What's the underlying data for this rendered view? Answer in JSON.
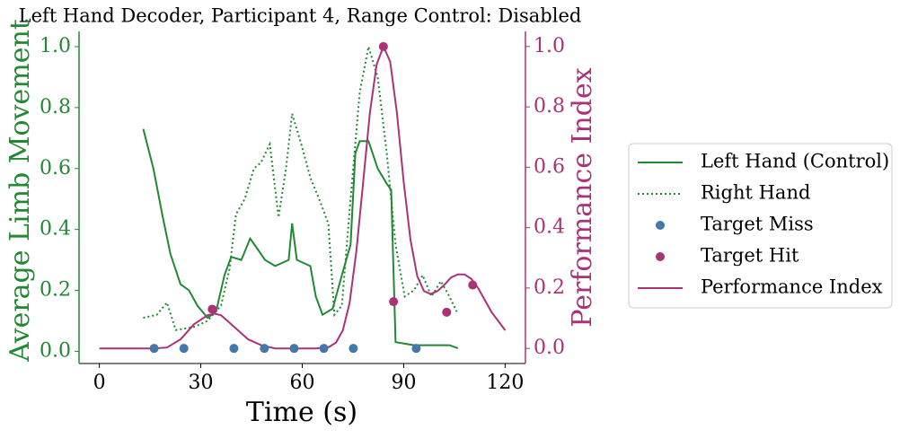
{
  "chart_data": {
    "type": "line",
    "title": "Left Hand Decoder, Participant 4, Range Control: Disabled",
    "xlabel": "Time (s)",
    "ylabel": "Average Limb Movement",
    "y2label": "Performance Index",
    "xlim": [
      -6,
      126
    ],
    "xticks": [
      0,
      30,
      60,
      90,
      120
    ],
    "ylim": [
      -0.04,
      1.05
    ],
    "yticks": [
      {
        "value": 0,
        "label": "0.0"
      },
      {
        "value": 0.2,
        "label": "0.2"
      },
      {
        "value": 0.4,
        "label": "0.4"
      },
      {
        "value": 0.6,
        "label": "0.6"
      },
      {
        "value": 0.8,
        "label": "0.8"
      },
      {
        "value": 1,
        "label": "1.0"
      }
    ],
    "y2lim": [
      -0.05,
      1.05
    ],
    "y2ticks": [
      {
        "value": 0,
        "label": "0.0"
      },
      {
        "value": 0.2,
        "label": "0.2"
      },
      {
        "value": 0.4,
        "label": "0.4"
      },
      {
        "value": 0.6,
        "label": "0.6"
      },
      {
        "value": 0.8,
        "label": "0.8"
      },
      {
        "value": 1,
        "label": "1.0"
      }
    ],
    "legend": "right",
    "series": [
      {
        "name": "Left Hand (Control)",
        "kind": "line",
        "style": "solid",
        "color": "#228833",
        "x": [
          13,
          16,
          18.6,
          21,
          24,
          26.5,
          29,
          32,
          34.5,
          37,
          39,
          42,
          44.6,
          46.5,
          49,
          52,
          56,
          57,
          58.4,
          62.4,
          64,
          66,
          69,
          71.7,
          74.3,
          75.7,
          77,
          79.6,
          82.3,
          85,
          86.3,
          87.6,
          93,
          103.5,
          106
        ],
        "values": [
          0.73,
          0.6,
          0.45,
          0.32,
          0.22,
          0.2,
          0.15,
          0.11,
          0.13,
          0.25,
          0.31,
          0.3,
          0.37,
          0.34,
          0.3,
          0.28,
          0.3,
          0.42,
          0.3,
          0.28,
          0.18,
          0.12,
          0.14,
          0.25,
          0.35,
          0.65,
          0.69,
          0.69,
          0.6,
          0.55,
          0.53,
          0.03,
          0.02,
          0.02,
          0.01
        ]
      },
      {
        "name": "Right Hand",
        "kind": "line",
        "style": "dotted",
        "color": "#228833",
        "x": [
          13,
          17,
          20,
          22.6,
          28,
          32,
          36,
          38.5,
          40.4,
          43,
          45.7,
          47.8,
          50.4,
          53,
          55.2,
          57,
          59.7,
          62.4,
          65,
          67.7,
          69.5,
          71.7,
          74.3,
          77,
          79.6,
          82.3,
          85,
          87.6,
          90.3,
          93,
          95.6,
          98.2,
          101,
          103.5,
          105.7
        ],
        "values": [
          0.11,
          0.12,
          0.16,
          0.07,
          0.08,
          0.1,
          0.15,
          0.27,
          0.45,
          0.5,
          0.6,
          0.62,
          0.68,
          0.44,
          0.6,
          0.78,
          0.68,
          0.57,
          0.5,
          0.42,
          0.12,
          0.15,
          0.5,
          0.85,
          1.0,
          0.9,
          0.65,
          0.35,
          0.18,
          0.2,
          0.25,
          0.18,
          0.23,
          0.18,
          0.13
        ]
      },
      {
        "name": "Target Miss",
        "kind": "scatter",
        "axis": "y2",
        "color": "#4477aa",
        "x": [
          16.2,
          25,
          39.8,
          48.8,
          57.6,
          66.4,
          75.1,
          93.7
        ],
        "values": [
          0,
          0,
          0,
          0,
          0,
          0,
          0,
          0
        ]
      },
      {
        "name": "Target Hit",
        "kind": "scatter",
        "axis": "y2",
        "color": "#aa3377",
        "x": [
          33.4,
          84,
          87,
          102.7,
          110.4
        ],
        "values": [
          0.13,
          1.0,
          0.155,
          0.12,
          0.21
        ]
      },
      {
        "name": "Performance Index",
        "kind": "line",
        "style": "solid",
        "axis": "y2",
        "color": "#aa3377",
        "x": [
          0,
          4,
          8,
          12,
          16,
          20,
          24,
          28,
          32,
          34,
          36,
          40,
          44,
          48,
          52,
          56,
          60,
          64,
          68,
          70,
          72,
          74,
          76,
          78,
          80,
          82,
          84,
          86,
          88,
          90,
          92,
          94,
          96,
          98,
          100,
          102,
          104,
          106,
          108,
          110,
          112,
          114,
          116,
          118,
          120
        ],
        "values": [
          0,
          0,
          0,
          0,
          0,
          0.003,
          0.03,
          0.08,
          0.11,
          0.115,
          0.11,
          0.07,
          0.03,
          0.01,
          0,
          0,
          0,
          0,
          0.005,
          0.02,
          0.06,
          0.15,
          0.32,
          0.55,
          0.78,
          0.94,
          1.0,
          0.95,
          0.78,
          0.55,
          0.36,
          0.24,
          0.19,
          0.18,
          0.19,
          0.21,
          0.235,
          0.245,
          0.245,
          0.23,
          0.2,
          0.16,
          0.12,
          0.09,
          0.06
        ]
      }
    ]
  }
}
